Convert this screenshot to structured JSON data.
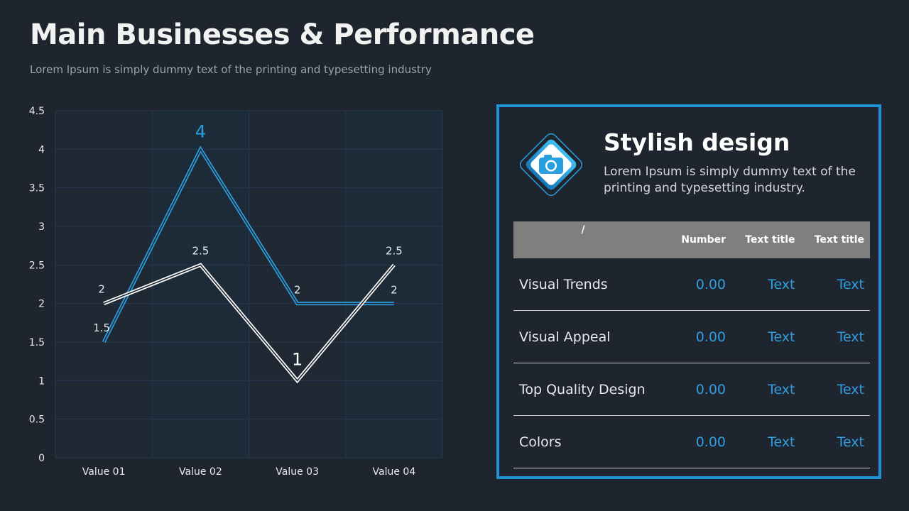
{
  "header": {
    "title": "Main Businesses & Performance",
    "subtitle": "Lorem Ipsum is simply dummy text of the printing and typesetting industry"
  },
  "chart_data": {
    "type": "line",
    "categories": [
      "Value 01",
      "Value 02",
      "Value 03",
      "Value 04"
    ],
    "series": [
      {
        "values": [
          1.5,
          4,
          2,
          2
        ],
        "color": "#2a9fe0",
        "labels": [
          "1.5",
          "4",
          "2",
          "2"
        ]
      },
      {
        "values": [
          2,
          2.5,
          1,
          2.5
        ],
        "color": "#ffffff",
        "labels": [
          "2",
          "2.5",
          "1",
          "2.5"
        ]
      }
    ],
    "ylim": [
      0,
      4.5
    ],
    "yticks": [
      "0",
      "0.5",
      "1",
      "1.5",
      "2",
      "2.5",
      "3",
      "3.5",
      "4",
      "4.5"
    ],
    "grid": true,
    "title": "",
    "xlabel": "",
    "ylabel": ""
  },
  "card": {
    "icon": "camera-icon",
    "title": "Stylish design",
    "description": "Lorem Ipsum is simply dummy text of the printing and typesetting industry.",
    "accent": "#1b93d6",
    "table": {
      "headers": [
        "/",
        "Number",
        "Text title",
        "Text title"
      ],
      "rows": [
        {
          "label": "Visual Trends",
          "number": "0.00",
          "t1": "Text",
          "t2": "Text"
        },
        {
          "label": "Visual Appeal",
          "number": "0.00",
          "t1": "Text",
          "t2": "Text"
        },
        {
          "label": "Top Quality Design",
          "number": "0.00",
          "t1": "Text",
          "t2": "Text"
        },
        {
          "label": "Colors",
          "number": "0.00",
          "t1": "Text",
          "t2": "Text"
        }
      ]
    }
  }
}
